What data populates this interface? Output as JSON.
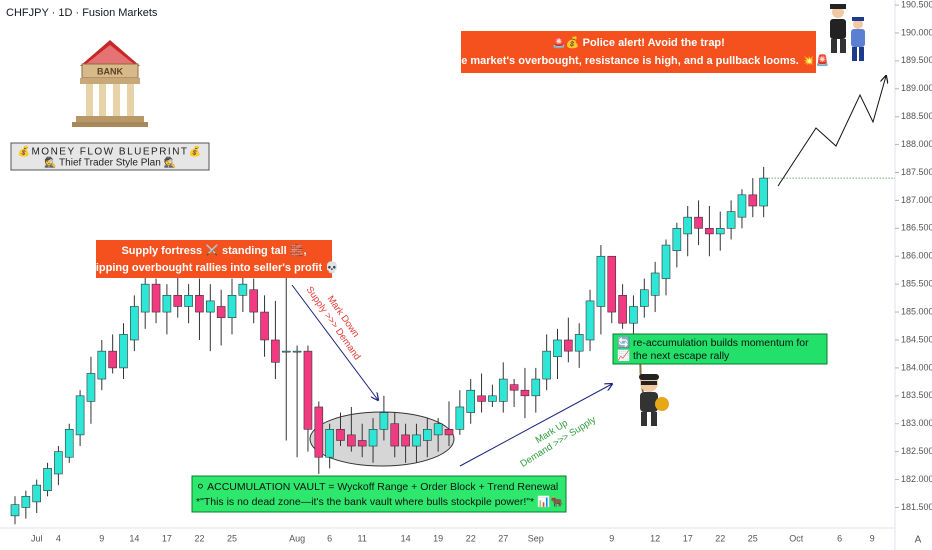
{
  "chart_data": {
    "type": "candlestick",
    "title": "CHFJPY · 1D · Fusion Markets",
    "up_color": "#2ee6d6",
    "down_color": "#f23a82",
    "categories": [
      null,
      null,
      "Jul",
      null,
      "4",
      null,
      null,
      null,
      "9",
      null,
      null,
      "14",
      null,
      null,
      "17",
      null,
      null,
      "22",
      null,
      null,
      "25",
      null,
      null,
      null,
      null,
      null,
      "Aug",
      null,
      null,
      "6",
      null,
      null,
      "11",
      null,
      null,
      null,
      "14",
      null,
      null,
      "19",
      null,
      null,
      "22",
      null,
      null,
      "27",
      null,
      null,
      "Sep",
      null,
      null,
      null,
      null,
      null,
      null,
      "9",
      null,
      null,
      null,
      "12",
      null,
      null,
      "17",
      null,
      null,
      "22",
      null,
      null,
      "25",
      null,
      null,
      null,
      "Oct",
      null,
      null,
      null,
      "6",
      null,
      null,
      "9",
      null,
      null,
      null,
      null
    ],
    "open": [
      181.35,
      181.5,
      181.6,
      181.8,
      182.1,
      182.4,
      182.8,
      183.4,
      183.8,
      184.3,
      184.0,
      184.5,
      185.0,
      185.5,
      185.0,
      185.3,
      185.1,
      185.3,
      185.0,
      185.1,
      184.9,
      185.3,
      185.4,
      185.0,
      184.5,
      184.3,
      184.3,
      184.3,
      183.3,
      182.4,
      182.9,
      182.8,
      182.7,
      182.6,
      182.9,
      183.0,
      182.8,
      182.6,
      182.7,
      182.8,
      182.9,
      182.9,
      183.2,
      183.5,
      183.4,
      183.4,
      183.7,
      183.6,
      183.5,
      183.8,
      184.2,
      184.5,
      184.3,
      184.5,
      185.1,
      186.0,
      185.3,
      184.8,
      185.1,
      185.3,
      185.6,
      186.1,
      186.4,
      186.7,
      186.5,
      186.4,
      186.5,
      186.7,
      187.1,
      186.9,
      null,
      null,
      null,
      null,
      null,
      null,
      null,
      null,
      null,
      null,
      null,
      null,
      null,
      null
    ],
    "high": [
      181.7,
      181.8,
      182.0,
      182.3,
      182.6,
      183.0,
      183.6,
      184.2,
      184.5,
      184.6,
      184.8,
      185.3,
      185.8,
      185.6,
      185.5,
      185.8,
      185.5,
      185.6,
      185.5,
      185.4,
      185.6,
      185.9,
      185.6,
      185.3,
      185.2,
      185.7,
      184.4,
      184.4,
      183.4,
      183.0,
      183.2,
      183.3,
      183.0,
      183.1,
      183.5,
      183.2,
      183.0,
      183.0,
      183.1,
      183.1,
      183.4,
      183.6,
      183.8,
      183.9,
      183.7,
      184.1,
      183.8,
      184.0,
      184.0,
      184.6,
      184.7,
      184.9,
      184.8,
      185.4,
      186.2,
      186.0,
      185.5,
      185.3,
      185.6,
      185.9,
      186.3,
      186.6,
      186.9,
      187.0,
      186.9,
      186.8,
      187.0,
      187.2,
      187.4,
      187.6,
      null,
      null,
      null,
      null,
      null,
      null,
      null,
      null,
      null,
      null,
      null,
      null,
      null,
      null
    ],
    "low": [
      181.2,
      181.3,
      181.4,
      181.7,
      181.9,
      182.3,
      182.6,
      183.0,
      183.6,
      183.9,
      183.8,
      184.3,
      184.7,
      184.8,
      184.6,
      184.9,
      184.8,
      184.5,
      184.3,
      184.4,
      184.6,
      185.0,
      184.8,
      184.2,
      183.8,
      182.7,
      182.4,
      182.5,
      182.1,
      182.2,
      182.6,
      182.5,
      182.4,
      182.3,
      182.7,
      182.4,
      182.3,
      182.3,
      182.4,
      182.5,
      182.6,
      182.8,
      183.0,
      183.2,
      183.3,
      183.2,
      183.3,
      183.1,
      183.2,
      183.6,
      183.8,
      184.1,
      184.0,
      184.3,
      184.6,
      184.8,
      184.7,
      184.6,
      184.9,
      185.0,
      185.3,
      185.8,
      186.0,
      186.2,
      186.0,
      186.1,
      186.3,
      186.5,
      186.7,
      186.7,
      null,
      null,
      null,
      null,
      null,
      null,
      null,
      null,
      null,
      null,
      null,
      null,
      null,
      null
    ],
    "close": [
      181.55,
      181.7,
      181.9,
      182.2,
      182.5,
      182.9,
      183.5,
      183.9,
      184.3,
      184.0,
      184.6,
      185.1,
      185.5,
      185.0,
      185.3,
      185.1,
      185.3,
      185.0,
      185.2,
      184.9,
      185.3,
      185.5,
      185.0,
      184.5,
      184.1,
      184.3,
      184.3,
      182.9,
      182.4,
      182.9,
      182.7,
      182.6,
      182.6,
      182.9,
      183.2,
      182.6,
      182.6,
      182.8,
      182.9,
      183.0,
      182.8,
      183.3,
      183.6,
      183.4,
      183.5,
      183.8,
      183.6,
      183.5,
      183.8,
      184.3,
      184.5,
      184.3,
      184.6,
      185.2,
      186.0,
      185.0,
      184.8,
      185.1,
      185.4,
      185.7,
      186.2,
      186.5,
      186.7,
      186.5,
      186.4,
      186.5,
      186.8,
      187.1,
      186.9,
      187.4,
      null,
      null,
      null,
      null,
      null,
      null,
      null,
      null,
      null,
      null,
      null,
      null,
      null,
      null
    ],
    "ylim": [
      181.15,
      190.59
    ],
    "yticks": [
      {
        "value": 181.5,
        "label": "181.500"
      },
      {
        "value": 182,
        "label": "182.000"
      },
      {
        "value": 182.5,
        "label": "182.500"
      },
      {
        "value": 183,
        "label": "183.000"
      },
      {
        "value": 183.5,
        "label": "183.500"
      },
      {
        "value": 184,
        "label": "184.000"
      },
      {
        "value": 184.5,
        "label": "184.500"
      },
      {
        "value": 185,
        "label": "185.000"
      },
      {
        "value": 185.5,
        "label": "185.500"
      },
      {
        "value": 186,
        "label": "186.000"
      },
      {
        "value": 186.5,
        "label": "186.500"
      },
      {
        "value": 187,
        "label": "187.000"
      },
      {
        "value": 187.5,
        "label": "187.500"
      },
      {
        "value": 188,
        "label": "188.000"
      },
      {
        "value": 188.5,
        "label": "188.500"
      },
      {
        "value": 189,
        "label": "189.000"
      },
      {
        "value": 189.5,
        "label": "189.500"
      },
      {
        "value": 190,
        "label": "190.000"
      },
      {
        "value": 190.5,
        "label": "190.500"
      }
    ],
    "annotations": [
      [
        "💰MONEY FLOW BLUEPRINT💰",
        "🕵 Thief Trader Style Plan 🕵"
      ],
      [
        "Supply fortress ⚔️ standing tall 🧱,",
        "flipping overbought rallies into seller's profit 💀"
      ],
      [
        "🚨💰 Police alert!  Avoid the trap!",
        "The market's overbought, resistance is high, and a pullback looms. 💥🚨"
      ],
      [
        "Mark Down",
        "Supply >>> Demand"
      ],
      [
        "Mark Up",
        "Demand >>> Supply"
      ],
      [
        "🔄 re-accumulation builds momentum for",
        "📈 the next escape rally"
      ],
      [
        "⚪ ACCUMULATION VAULT = Wyckoff Range + Order Block + Trend Renewal",
        "*\"This is no dead zone—it's the bank vault where bulls stockpile power!\"* 📊🐂"
      ]
    ],
    "bank_sign": "BANK",
    "scale_mode": "A"
  }
}
